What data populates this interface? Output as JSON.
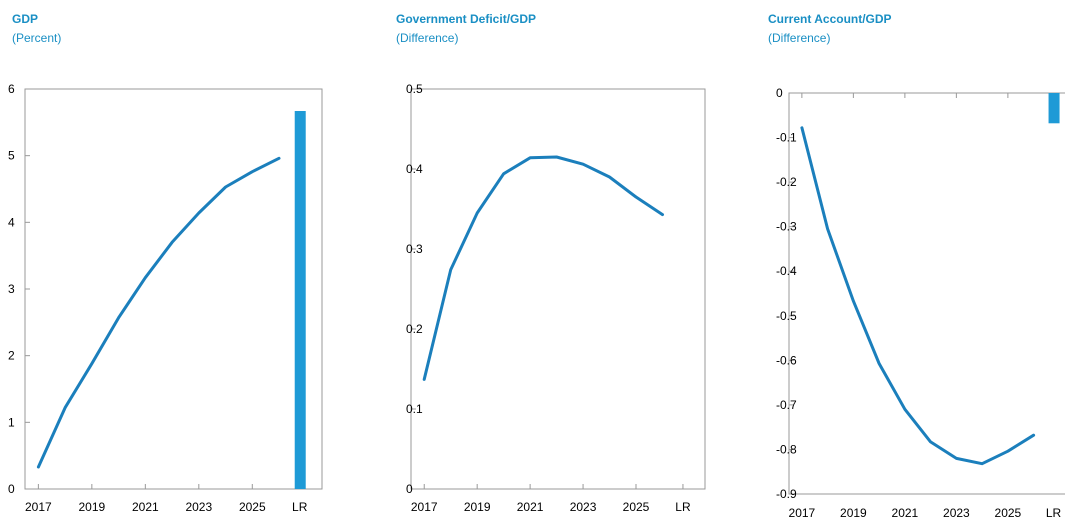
{
  "chart_data": [
    {
      "type": "line",
      "title": "GDP",
      "subtitle": "(Percent)",
      "x": [
        2017,
        2018,
        2019,
        2020,
        2021,
        2022,
        2023,
        2024,
        2025,
        2026
      ],
      "xtick_labels": [
        "2017",
        "2019",
        "2021",
        "2023",
        "2025",
        "LR"
      ],
      "yticks": [
        "0",
        "1",
        "2",
        "3",
        "4",
        "5",
        "6"
      ],
      "ylim": [
        0,
        6
      ],
      "series": [
        {
          "values": [
            0.33,
            1.22,
            1.88,
            2.57,
            3.17,
            3.7,
            4.14,
            4.53,
            4.76,
            4.96
          ]
        }
      ],
      "long_run": 5.67,
      "color": "#1b7fbc",
      "bar_color": "#1e9ad6",
      "grid": false
    },
    {
      "type": "line",
      "title": "Government Deficit/GDP",
      "subtitle": "(Difference)",
      "x": [
        2017,
        2018,
        2019,
        2020,
        2021,
        2022,
        2023,
        2024,
        2025,
        2026
      ],
      "xtick_labels": [
        "2017",
        "2019",
        "2021",
        "2023",
        "2025",
        "LR"
      ],
      "yticks": [
        "0",
        "0.1",
        "0.2",
        "0.3",
        "0.4",
        "0.5"
      ],
      "ylim": [
        0,
        0.5
      ],
      "series": [
        {
          "values": [
            0.137,
            0.274,
            0.345,
            0.394,
            0.414,
            0.415,
            0.406,
            0.39,
            0.365,
            0.343
          ]
        }
      ],
      "color": "#1b7fbc",
      "grid": false
    },
    {
      "type": "line",
      "title": "Current Account/GDP",
      "subtitle": "(Difference)",
      "x": [
        2017,
        2018,
        2019,
        2020,
        2021,
        2022,
        2023,
        2024,
        2025,
        2026
      ],
      "xtick_labels": [
        "2017",
        "2019",
        "2021",
        "2023",
        "2025",
        "LR"
      ],
      "yticks": [
        "0",
        "-0.1",
        "-0.2",
        "-0.3",
        "-0.4",
        "-0.5",
        "-0.6",
        "-0.7",
        "-0.8",
        "-0.9"
      ],
      "ylim": [
        -0.9,
        0
      ],
      "series": [
        {
          "values": [
            -0.078,
            -0.305,
            -0.467,
            -0.607,
            -0.71,
            -0.783,
            -0.82,
            -0.832,
            -0.804,
            -0.768
          ]
        }
      ],
      "long_run": -0.068,
      "color": "#1b7fbc",
      "bar_color": "#1e9ad6",
      "grid": false
    }
  ]
}
